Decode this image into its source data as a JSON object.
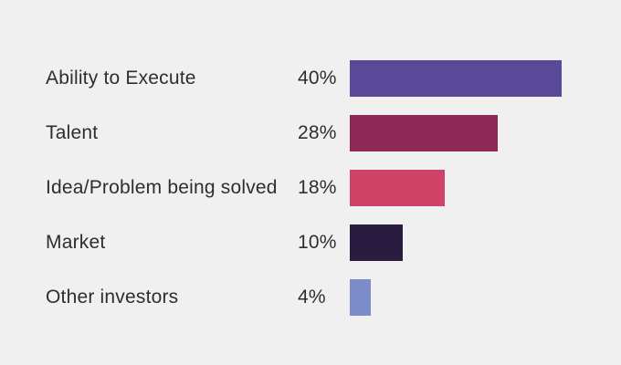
{
  "background_color": "#f0f0f1",
  "text_color": "#2e2e2e",
  "chart_data": {
    "type": "bar",
    "orientation": "horizontal",
    "title": "",
    "xlabel": "",
    "ylabel": "",
    "categories": [
      "Ability to Execute",
      "Talent",
      "Idea/Problem being solved",
      "Market",
      "Other investors"
    ],
    "values": [
      40,
      28,
      18,
      10,
      4
    ],
    "value_labels": [
      "40%",
      "28%",
      "18%",
      "10%",
      "4%"
    ],
    "colors": [
      "#5a4899",
      "#8c2957",
      "#cf4369",
      "#2a1b41",
      "#7b8cc9"
    ],
    "xlim": [
      0,
      51
    ],
    "grid": false,
    "legend": false,
    "value_label_position": "left-of-bar"
  }
}
